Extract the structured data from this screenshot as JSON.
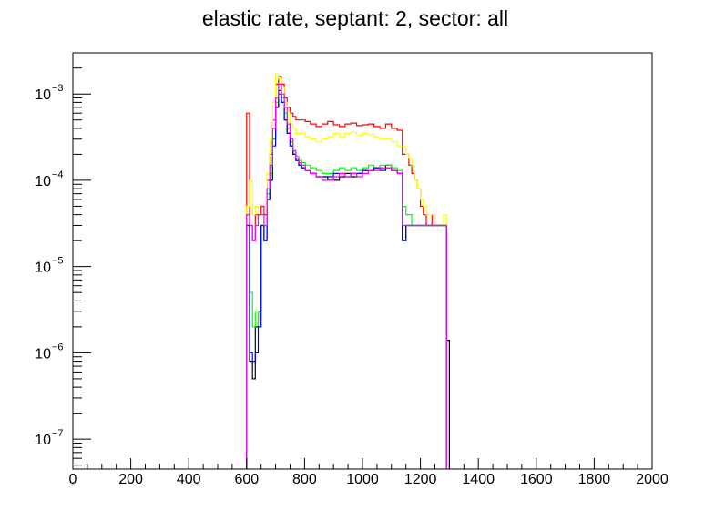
{
  "chart_data": {
    "type": "line",
    "style": "step",
    "title": "elastic rate, septant: 2, sector: all",
    "xlabel": "",
    "ylabel": "",
    "xlim": [
      0,
      2000
    ],
    "ylim": [
      4.5e-08,
      0.003
    ],
    "yscale": "log",
    "grid": false,
    "legend": "none",
    "x_ticks": [
      0,
      200,
      400,
      600,
      800,
      1000,
      1200,
      1400,
      1600,
      1800,
      2000
    ],
    "x_tick_labels": [
      "0",
      "200",
      "400",
      "600",
      "800",
      "1000",
      "1200",
      "1400",
      "1600",
      "1800",
      "2000"
    ],
    "y_ticks": [
      {
        "value": 1e-07,
        "base": "10",
        "exp": "−7"
      },
      {
        "value": 1e-06,
        "base": "10",
        "exp": "−6"
      },
      {
        "value": 1e-05,
        "base": "10",
        "exp": "−5"
      },
      {
        "value": 0.0001,
        "base": "10",
        "exp": "−4"
      },
      {
        "value": 0.001,
        "base": "10",
        "exp": "−3"
      }
    ],
    "series": [
      {
        "color": "#000000",
        "x": [
          605,
          615,
          625,
          635,
          645,
          655,
          665,
          675,
          685,
          695,
          705,
          715,
          725,
          735,
          745,
          755,
          765,
          775,
          785,
          795,
          810,
          830,
          850,
          870,
          890,
          910,
          930,
          950,
          970,
          990,
          1010,
          1030,
          1050,
          1070,
          1090,
          1110,
          1130,
          1145,
          1155,
          1165,
          1175,
          1185,
          1195,
          1205,
          1215,
          1225,
          1235,
          1245,
          1255,
          1265,
          1275,
          1285,
          1295
        ],
        "y": [
          3e-05,
          8e-07,
          5e-07,
          2e-06,
          3e-06,
          3e-05,
          2e-05,
          6e-05,
          0.0001,
          0.0003,
          0.0007,
          0.0011,
          0.0008,
          0.0005,
          0.00035,
          0.00025,
          0.0002,
          0.00017,
          0.00015,
          0.00014,
          0.00013,
          0.00012,
          0.00011,
          0.00011,
          0.0001,
          0.0001,
          0.00011,
          0.00012,
          0.00011,
          0.00012,
          0.00013,
          0.00013,
          0.00014,
          0.00014,
          0.00015,
          0.00013,
          0.00012,
          2e-05,
          3e-05,
          3e-05,
          3e-05,
          3e-05,
          3e-05,
          3e-05,
          3e-05,
          3e-05,
          3e-05,
          3e-05,
          3e-05,
          3e-05,
          3e-05,
          3e-05,
          1.4e-06
        ]
      },
      {
        "color": "#ff0000",
        "x": [
          605,
          615,
          625,
          635,
          645,
          655,
          665,
          675,
          685,
          695,
          705,
          715,
          725,
          735,
          745,
          755,
          765,
          775,
          785,
          795,
          810,
          830,
          850,
          870,
          890,
          910,
          930,
          950,
          970,
          990,
          1010,
          1030,
          1050,
          1070,
          1090,
          1110,
          1130,
          1145,
          1155,
          1165,
          1175,
          1185,
          1195,
          1205,
          1215,
          1225,
          1235,
          1245,
          1255,
          1265,
          1275,
          1285
        ],
        "y": [
          0.0006,
          3e-05,
          2e-05,
          4e-05,
          4e-05,
          5e-05,
          4e-05,
          0.0001,
          0.0002,
          0.0005,
          0.0013,
          0.0016,
          0.0013,
          0.0009,
          0.0007,
          0.0006,
          0.00055,
          0.0005,
          0.0005,
          0.0005,
          0.00048,
          0.00045,
          0.00042,
          0.00045,
          0.00048,
          0.00044,
          0.00042,
          0.00045,
          0.00046,
          0.00043,
          0.00044,
          0.00045,
          0.00042,
          0.0004,
          0.00045,
          0.0004,
          0.00038,
          0.0002,
          0.0002,
          0.00015,
          0.00012,
          0.0001,
          8e-05,
          5e-05,
          4e-05,
          3e-05,
          3e-05,
          4e-05,
          3e-05,
          3e-05,
          3e-05,
          3e-05
        ]
      },
      {
        "color": "#ffff00",
        "x": [
          605,
          615,
          625,
          635,
          645,
          655,
          665,
          675,
          685,
          695,
          705,
          715,
          725,
          735,
          745,
          755,
          765,
          775,
          785,
          795,
          810,
          830,
          850,
          870,
          890,
          910,
          930,
          950,
          970,
          990,
          1010,
          1030,
          1050,
          1070,
          1090,
          1110,
          1130,
          1145,
          1155,
          1165,
          1175,
          1185,
          1195,
          1205,
          1215,
          1225,
          1235,
          1245,
          1255,
          1265,
          1275,
          1285
        ],
        "y": [
          5e-05,
          0.0001,
          4e-05,
          5e-05,
          4e-05,
          4e-05,
          3e-05,
          0.00012,
          0.0003,
          0.0008,
          0.0017,
          0.0015,
          0.0012,
          0.0008,
          0.0006,
          0.00045,
          0.0004,
          0.00035,
          0.00035,
          0.00035,
          0.00032,
          0.0003,
          0.00028,
          0.0003,
          0.00032,
          0.00035,
          0.00032,
          0.00035,
          0.00036,
          0.00033,
          0.00035,
          0.00034,
          0.00032,
          0.0003,
          0.0003,
          0.00028,
          0.00025,
          0.00025,
          0.0002,
          0.00018,
          0.00015,
          0.0001,
          8e-05,
          6e-05,
          5e-05,
          4e-05,
          4e-05,
          4e-05,
          3e-05,
          3e-05,
          3e-05,
          4e-05
        ]
      },
      {
        "color": "#00ff00",
        "x": [
          605,
          615,
          625,
          635,
          645,
          655,
          665,
          675,
          685,
          695,
          705,
          715,
          725,
          735,
          745,
          755,
          765,
          775,
          785,
          795,
          810,
          830,
          850,
          870,
          890,
          910,
          930,
          950,
          970,
          990,
          1010,
          1030,
          1050,
          1070,
          1090,
          1110,
          1130,
          1145,
          1155,
          1165,
          1175,
          1185,
          1195,
          1205,
          1215,
          1225,
          1235,
          1245,
          1255,
          1265,
          1275,
          1285
        ],
        "y": [
          4e-05,
          5e-06,
          2e-06,
          3e-06,
          2e-06,
          3e-05,
          2e-05,
          7e-05,
          0.00012,
          0.0003,
          0.0008,
          0.0012,
          0.0009,
          0.0006,
          0.0004,
          0.00028,
          0.00022,
          0.00019,
          0.00017,
          0.00016,
          0.00015,
          0.00014,
          0.00013,
          0.00012,
          0.00012,
          0.00013,
          0.00014,
          0.00013,
          0.00014,
          0.00013,
          0.00014,
          0.00015,
          0.00014,
          0.00015,
          0.00015,
          0.00014,
          0.00013,
          5e-05,
          4e-05,
          4e-05,
          3e-05,
          3e-05,
          3e-05,
          3e-05,
          3e-05,
          3e-05,
          3e-05,
          3e-05,
          3e-05,
          3e-05,
          3e-05,
          3e-05
        ]
      },
      {
        "color": "#0000ff",
        "x": [
          605,
          615,
          625,
          635,
          645,
          655,
          665,
          675,
          685,
          695,
          705,
          715,
          725,
          735,
          745,
          755,
          765,
          775,
          785,
          795,
          810,
          830,
          850,
          870,
          890,
          910,
          930,
          950,
          970,
          990,
          1010,
          1030,
          1050,
          1070,
          1090,
          1110,
          1130,
          1145,
          1155,
          1165,
          1175,
          1185,
          1195,
          1205,
          1215,
          1225,
          1235,
          1245,
          1255,
          1265,
          1275,
          1285
        ],
        "y": [
          3e-05,
          1e-06,
          8e-07,
          1e-06,
          2e-06,
          3e-05,
          2e-05,
          6e-05,
          0.0001,
          0.00025,
          0.0007,
          0.001,
          0.0008,
          0.0005,
          0.00035,
          0.00025,
          0.0002,
          0.00017,
          0.00015,
          0.00014,
          0.00013,
          0.00012,
          0.00011,
          0.00011,
          0.00011,
          0.00012,
          0.00012,
          0.00011,
          0.00012,
          0.00012,
          0.00013,
          0.00013,
          0.00014,
          0.00013,
          0.00014,
          0.00013,
          0.00012,
          2e-05,
          3e-05,
          3e-05,
          3e-05,
          3e-05,
          3e-05,
          3e-05,
          3e-05,
          3e-05,
          3e-05,
          3e-05,
          3e-05,
          3e-05,
          3e-05,
          3e-05
        ]
      },
      {
        "color": "#ff00ff",
        "x": [
          605,
          615,
          625,
          635,
          645,
          655,
          665,
          675,
          685,
          695,
          705,
          715,
          725,
          735,
          745,
          755,
          765,
          775,
          785,
          795,
          810,
          830,
          850,
          870,
          890,
          910,
          930,
          950,
          970,
          990,
          1010,
          1030,
          1050,
          1070,
          1090,
          1110,
          1130,
          1145,
          1155,
          1165,
          1175,
          1185,
          1195,
          1205,
          1215,
          1225,
          1235,
          1245,
          1255,
          1265,
          1275,
          1285
        ],
        "y": [
          4e-05,
          3e-05,
          2e-05,
          3e-05,
          4e-05,
          4e-05,
          3e-05,
          8e-05,
          0.00015,
          0.0004,
          0.0009,
          0.0013,
          0.001,
          0.0007,
          0.00045,
          0.0003,
          0.00022,
          0.00018,
          0.00016,
          0.00015,
          0.00013,
          0.00012,
          0.00011,
          0.0001,
          0.0001,
          0.00011,
          0.00012,
          0.00011,
          0.00012,
          0.00011,
          0.00012,
          0.00013,
          0.00013,
          0.00014,
          0.00014,
          0.00013,
          0.00012,
          3e-05,
          3e-05,
          3e-05,
          3e-05,
          3e-05,
          3e-05,
          3e-05,
          3e-05,
          3e-05,
          3e-05,
          3e-05,
          3e-05,
          3e-05,
          3e-05,
          3e-05
        ]
      }
    ]
  }
}
